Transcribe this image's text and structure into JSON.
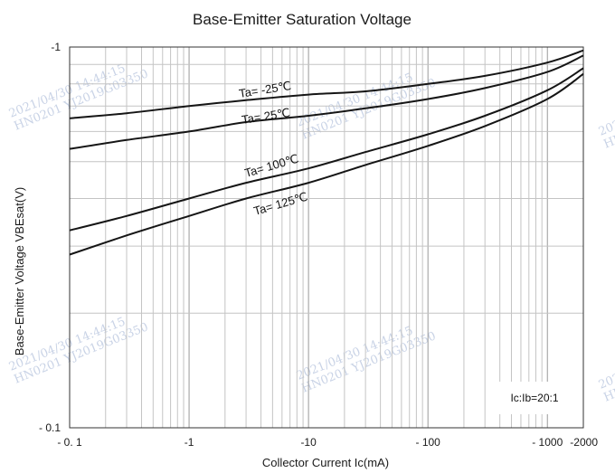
{
  "chart_data": {
    "type": "line",
    "title": "Base-Emitter Saturation Voltage",
    "xlabel": "Collector Current   Ic(mA)",
    "ylabel": "Base-Emitter Voltage   VBEsat(V)",
    "x_scale": "log",
    "y_scale": "log",
    "xlim": [
      0.1,
      2000
    ],
    "ylim": [
      0.1,
      1
    ],
    "x_ticks": [
      {
        "value": 0.1,
        "label": "- 0. 1"
      },
      {
        "value": 1,
        "label": "-1"
      },
      {
        "value": 10,
        "label": "-10"
      },
      {
        "value": 100,
        "label": "- 100"
      },
      {
        "value": 1000,
        "label": "- 1000"
      },
      {
        "value": 2000,
        "label": "-2000"
      }
    ],
    "y_ticks": [
      {
        "value": 1,
        "label": "-1"
      },
      {
        "value": 0.1,
        "label": "- 0.1"
      }
    ],
    "grid": true,
    "annotation": "Ic:Ib=20:1",
    "series": [
      {
        "name": "Ta= -25℃",
        "x": [
          0.1,
          0.3,
          1,
          3,
          10,
          30,
          100,
          300,
          1000,
          2000
        ],
        "y": [
          0.65,
          0.67,
          0.7,
          0.725,
          0.75,
          0.765,
          0.8,
          0.84,
          0.91,
          0.98
        ]
      },
      {
        "name": "Ta= 25℃",
        "x": [
          0.1,
          0.3,
          1,
          3,
          10,
          30,
          100,
          300,
          1000,
          2000
        ],
        "y": [
          0.54,
          0.57,
          0.6,
          0.635,
          0.66,
          0.69,
          0.73,
          0.78,
          0.86,
          0.95
        ]
      },
      {
        "name": "Ta= 100℃",
        "x": [
          0.1,
          0.3,
          1,
          3,
          10,
          30,
          100,
          300,
          1000,
          2000
        ],
        "y": [
          0.33,
          0.36,
          0.4,
          0.44,
          0.48,
          0.53,
          0.59,
          0.66,
          0.77,
          0.88
        ]
      },
      {
        "name": "Ta= 125℃",
        "x": [
          0.1,
          0.3,
          1,
          3,
          10,
          30,
          100,
          300,
          1000,
          2000
        ],
        "y": [
          0.285,
          0.32,
          0.36,
          0.4,
          0.44,
          0.49,
          0.55,
          0.62,
          0.73,
          0.85
        ]
      }
    ]
  },
  "watermark": {
    "lines": [
      "2021/04/30 14:44:15",
      "HN0201 YJ2019G03350"
    ]
  }
}
